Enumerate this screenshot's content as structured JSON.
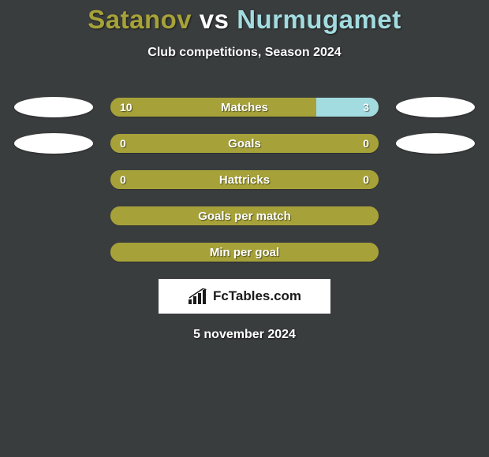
{
  "title": {
    "player1": "Satanov",
    "vs": " vs ",
    "player2": "Nurmugamet",
    "color1": "#a6a239",
    "color_vs": "#ffffff",
    "color2": "#a3dce0",
    "fontsize": 33
  },
  "subtitle": "Club competitions, Season 2024",
  "colors": {
    "left_fill": "#a6a239",
    "right_fill": "#a3dce0",
    "empty_fill": "#a6a239",
    "background": "#3a3d3e",
    "text": "#ffffff"
  },
  "bar": {
    "track_width": 340,
    "track_height": 24,
    "radius": 12
  },
  "rows": [
    {
      "label": "Matches",
      "left_val": "10",
      "right_val": "3",
      "left_pct": 76.9,
      "right_pct": 23.1,
      "show_avatars": true,
      "left_color": "#a6a239",
      "right_color": "#a3dce0"
    },
    {
      "label": "Goals",
      "left_val": "0",
      "right_val": "0",
      "left_pct": 100,
      "right_pct": 0,
      "show_avatars": true,
      "left_color": "#a6a239",
      "right_color": "#a3dce0"
    },
    {
      "label": "Hattricks",
      "left_val": "0",
      "right_val": "0",
      "left_pct": 100,
      "right_pct": 0,
      "show_avatars": false,
      "left_color": "#a6a239",
      "right_color": "#a3dce0"
    },
    {
      "label": "Goals per match",
      "left_val": "",
      "right_val": "",
      "left_pct": 100,
      "right_pct": 0,
      "show_avatars": false,
      "left_color": "#a6a239",
      "right_color": "#a3dce0"
    },
    {
      "label": "Min per goal",
      "left_val": "",
      "right_val": "",
      "left_pct": 100,
      "right_pct": 0,
      "show_avatars": false,
      "left_color": "#a6a239",
      "right_color": "#a3dce0"
    }
  ],
  "logo": {
    "text": "FcTables.com",
    "bar_color": "#1a1a1a"
  },
  "date": "5 november 2024"
}
